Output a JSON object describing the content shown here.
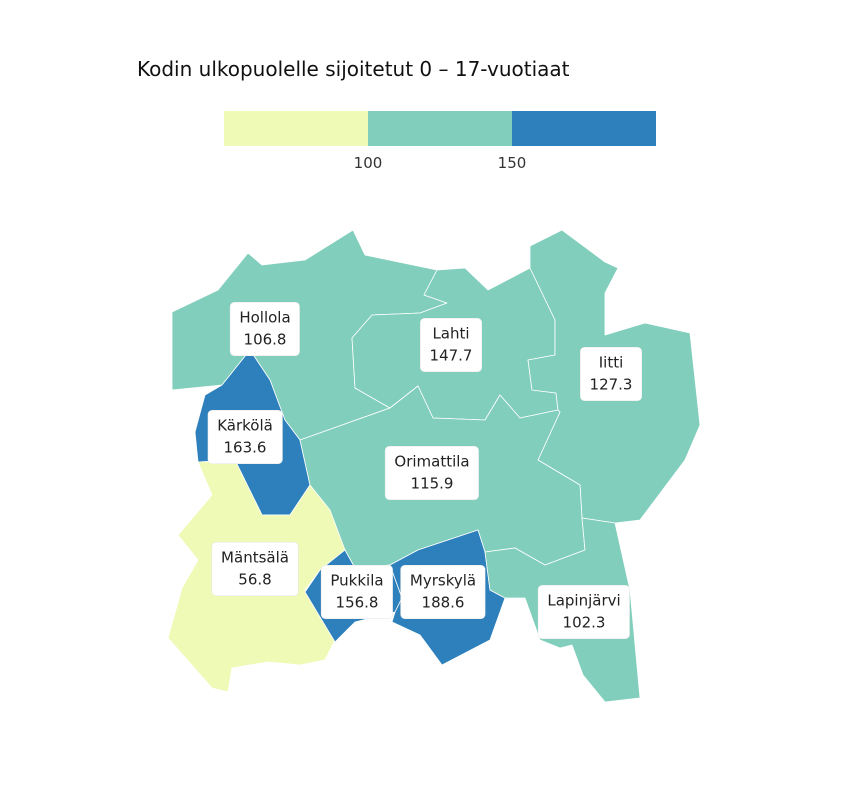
{
  "title": "Kodin ulkopuolelle sijoitetut 0 – 17-vuotiaat",
  "legend": {
    "bins": [
      {
        "name": "low",
        "color": "#eefab6"
      },
      {
        "name": "mid",
        "color": "#80cebb"
      },
      {
        "name": "high",
        "color": "#2d80bb"
      }
    ],
    "ticks": [
      "100",
      "150"
    ]
  },
  "regions": [
    {
      "name": "Hollola",
      "value": "106.8",
      "bin": "mid"
    },
    {
      "name": "Lahti",
      "value": "147.7",
      "bin": "mid"
    },
    {
      "name": "Iitti",
      "value": "127.3",
      "bin": "mid"
    },
    {
      "name": "Kärkölä",
      "value": "163.6",
      "bin": "high"
    },
    {
      "name": "Orimattila",
      "value": "115.9",
      "bin": "mid"
    },
    {
      "name": "Mäntsälä",
      "value": "56.8",
      "bin": "low"
    },
    {
      "name": "Pukkila",
      "value": "156.8",
      "bin": "high"
    },
    {
      "name": "Myrskylä",
      "value": "188.6",
      "bin": "high"
    },
    {
      "name": "Lapinjärvi",
      "value": "102.3",
      "bin": "mid"
    }
  ]
}
